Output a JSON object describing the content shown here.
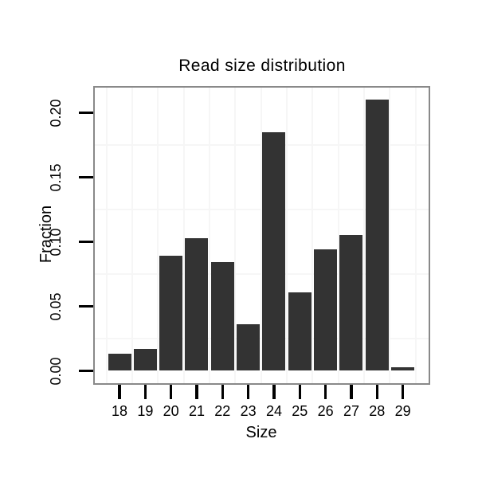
{
  "chart_data": {
    "type": "bar",
    "title": "Read size distribution",
    "xlabel": "Size",
    "ylabel": "Fraction",
    "categories": [
      "18",
      "19",
      "20",
      "21",
      "22",
      "23",
      "24",
      "25",
      "26",
      "27",
      "28",
      "29"
    ],
    "values": [
      0.013,
      0.017,
      0.089,
      0.103,
      0.084,
      0.036,
      0.185,
      0.061,
      0.094,
      0.105,
      0.21,
      0.003
    ],
    "ylim": [
      -0.0105,
      0.2205
    ],
    "yticks": [
      0.0,
      0.05,
      0.1,
      0.15,
      0.2
    ],
    "ytick_labels": [
      "0.00",
      "0.05",
      "0.10",
      "0.15",
      "0.20"
    ],
    "minor_gridlines_y": [
      0.025,
      0.075,
      0.125,
      0.175
    ],
    "grid": "minor gridlines only, very faint; vertical gridlines at category boundaries",
    "legend": "none",
    "bar_color": "#333333",
    "panel_border_color": "#898989",
    "tick_color": "#000000",
    "grid_color": "#f6f6f6",
    "background_color": "#ffffff"
  }
}
